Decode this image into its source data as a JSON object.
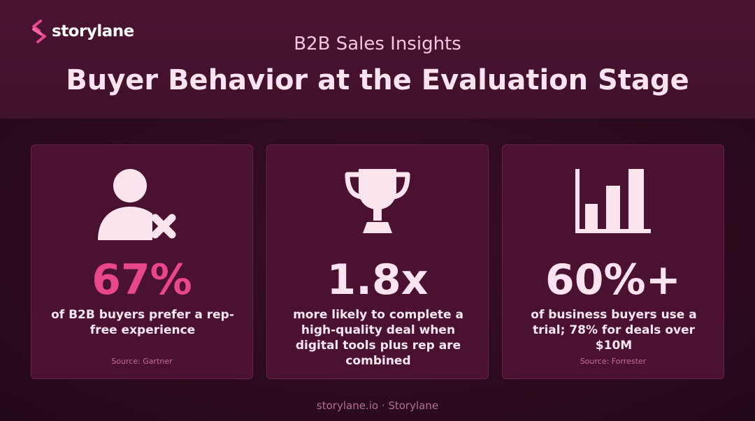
{
  "brand": {
    "name": "storylane",
    "accent_color": "#e8468d"
  },
  "header": {
    "subtitle": "B2B Sales Insights",
    "title": "Buyer Behavior at the Evaluation Stage"
  },
  "cards": [
    {
      "icon": "user-x-icon",
      "stat": "67%",
      "stat_color": "#e8468d",
      "description": "of B2B buyers prefer a rep-free experience",
      "source": "Source: Gartner"
    },
    {
      "icon": "trophy-icon",
      "stat": "1.8x",
      "stat_color": "#fde3ef",
      "description": "more likely to complete a high-quality deal when digital tools plus rep are combined",
      "source": ""
    },
    {
      "icon": "bar-chart-icon",
      "stat": "60%+",
      "stat_color": "#fde3ef",
      "description": "of business buyers use a trial; 78% for deals over $10M",
      "source": "Source: Forrester"
    }
  ],
  "footer": {
    "text": "storylane.io · Storylane"
  }
}
